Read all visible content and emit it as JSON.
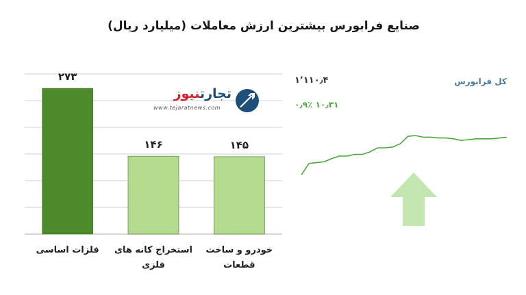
{
  "title": "صنایع فرابورس بیشترین ارزش معاملات  (میلیارد ریال)",
  "chart_data": [
    {
      "type": "bar",
      "categories": [
        "فلزات اساسی",
        "استخراج کانه های فلزی",
        "خودرو و ساخت قطعات"
      ],
      "category_lines": [
        [
          "فلزات اساسی"
        ],
        [
          "استخراج کانه های",
          "فلزی"
        ],
        [
          "خودرو و ساخت",
          "قطعات"
        ]
      ],
      "values": [
        273,
        146,
        145
      ],
      "value_labels": [
        "۲۷۳",
        "۱۴۶",
        "۱۴۵"
      ],
      "ylim": [
        0,
        300
      ],
      "grid": true,
      "colors": [
        "#4e8a2a",
        "#b5dc8e",
        "#b5dc8e"
      ]
    },
    {
      "type": "line",
      "series": [
        {
          "name": "کل فرابورس",
          "values": [
            1105.2,
            1106.6,
            1106.7,
            1106.8,
            1107.2,
            1107.5,
            1107.5,
            1107.7,
            1107.7,
            1108.0,
            1108.5,
            1108.5,
            1108.6,
            1109.0,
            1109.9,
            1110.0,
            1109.8,
            1109.8,
            1109.7,
            1109.7,
            1109.6,
            1109.4,
            1109.5,
            1109.6,
            1109.6,
            1109.6,
            1109.7,
            1109.8
          ]
        }
      ],
      "ylim": [
        1104,
        1111.5
      ],
      "color": "#4aa83c"
    }
  ],
  "index": {
    "name": "کل فرابورس",
    "value": "۱٬۱۱۰٫۴",
    "change": "۱۰٫۳۱  ۰٫۹٪"
  },
  "logo": {
    "word1": "تجارت",
    "word2": "نیوز",
    "url": "www.tejaratnews.com"
  },
  "colors": {
    "dark_green": "#4e8a2a",
    "light_green": "#b5dc8e",
    "arrow_green": "#c3e6b0",
    "index_green": "#4aa83c"
  }
}
